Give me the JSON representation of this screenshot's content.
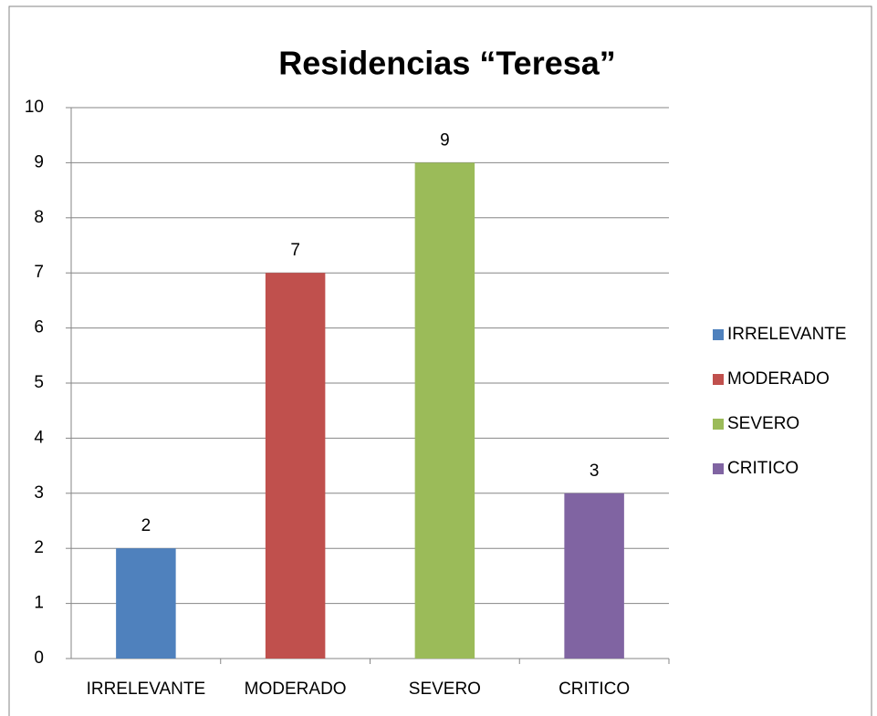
{
  "chart_data": {
    "type": "bar",
    "title": "Residencias “Teresa”",
    "categories": [
      "IRRELEVANTE",
      "MODERADO",
      "SEVERO",
      "CRITICO"
    ],
    "values": [
      2,
      7,
      9,
      3
    ],
    "colors": [
      "#4f81bd",
      "#c0504d",
      "#9bbb59",
      "#8064a2"
    ],
    "ylim": [
      0,
      10
    ],
    "yticks": [
      0,
      1,
      2,
      3,
      4,
      5,
      6,
      7,
      8,
      9,
      10
    ],
    "grid": true,
    "legend": "right"
  }
}
